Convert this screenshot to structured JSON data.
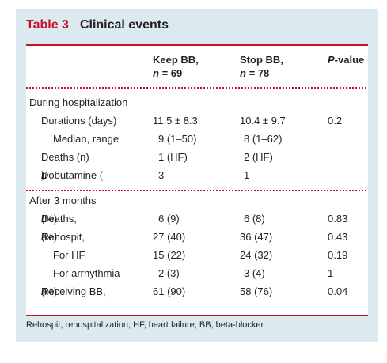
{
  "title": {
    "label": "Table 3",
    "name": "Clinical events"
  },
  "headers": {
    "keep_line1": "Keep BB,",
    "keep_line2_n": "n",
    "keep_line2_rest": " = 69",
    "stop_line1": "Stop BB,",
    "stop_line2_n": "n",
    "stop_line2_rest": " = 78",
    "pvalue_p": "P",
    "pvalue_rest": "-value"
  },
  "sections": {
    "hosp": "During hospitalization",
    "after": "After 3 months"
  },
  "rows": {
    "durations": {
      "label": "Durations (days)",
      "keep": "11.5 ± 8.3",
      "stop": "10.4 ± 9.7",
      "p": "0.2"
    },
    "median": {
      "label": "Median, range",
      "keep": "9 (1–50)",
      "stop": "8 (1–62)",
      "p": ""
    },
    "deaths_h": {
      "label": "Deaths (n)",
      "keep": "1 (HF)",
      "stop": "2 (HF)",
      "p": ""
    },
    "dobutamine": {
      "label_pre": "Dobutamine (",
      "label_it": "n",
      "label_post": ")",
      "keep": "3",
      "stop": "1",
      "p": ""
    },
    "deaths_3m": {
      "label_pre": "Deaths, ",
      "label_it": "n",
      "label_post": " (%)",
      "keep": "6 (9)",
      "stop": "6 (8)",
      "p": "0.83"
    },
    "rehospit": {
      "label_pre": "Rehospit, ",
      "label_it": "n",
      "label_post": " (%)",
      "keep": "27 (40)",
      "stop": "36 (47)",
      "p": "0.43"
    },
    "for_hf": {
      "label": "For HF",
      "keep": "15 (22)",
      "stop": "24 (32)",
      "p": "0.19"
    },
    "for_arr": {
      "label": "For arrhythmia",
      "keep": "2 (3)",
      "stop": "3 (4)",
      "p": "1"
    },
    "receiving": {
      "label_pre": "Receiving BB, ",
      "label_it": "n",
      "label_post": " (%)",
      "keep": "61 (90)",
      "stop": "58 (76)",
      "p": "0.04"
    }
  },
  "footnote": "Rehospit, rehospitalization; HF, heart failure; BB, beta-blocker.",
  "colors": {
    "accent": "#c8102e",
    "panel": "#dbeaee",
    "text": "#231f20"
  }
}
